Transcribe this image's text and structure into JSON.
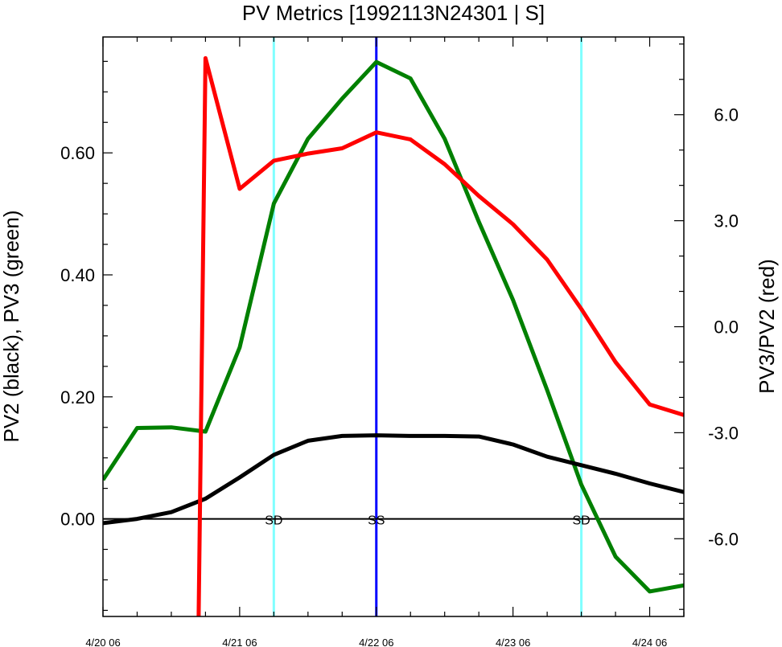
{
  "chart_data": {
    "type": "line",
    "title": "PV Metrics [1992113N24301 | S]",
    "ylabel_left": "PV2 (black), PV3 (green)",
    "ylabel_right": "PV3/PV2 (red)",
    "x_ticks": [
      {
        "x": 0,
        "label": "4/20 06"
      },
      {
        "x": 1,
        "label": "4/21 06"
      },
      {
        "x": 2,
        "label": "4/22 06"
      },
      {
        "x": 3,
        "label": "4/23 06"
      },
      {
        "x": 4,
        "label": "4/24 06"
      }
    ],
    "xlim": [
      0,
      4.25
    ],
    "ylim_left": [
      -0.16,
      0.79
    ],
    "ylim_right": [
      -8.2,
      8.2
    ],
    "left_ticks": [
      "0.00",
      "0.20",
      "0.40",
      "0.60"
    ],
    "right_ticks": [
      "-6.0",
      "-3.0",
      "0.0",
      "3.0",
      "6.0"
    ],
    "zero_line": 0,
    "vlines": [
      {
        "x": 1.25,
        "color": "#80ffff",
        "label": "SD"
      },
      {
        "x": 2.0,
        "color": "#0000ff",
        "label": "SS"
      },
      {
        "x": 3.5,
        "color": "#80ffff",
        "label": "SD"
      }
    ],
    "series": [
      {
        "axis": "left",
        "color": "#008000",
        "x": [
          0,
          0.25,
          0.5,
          0.75,
          1.0,
          1.25,
          1.5,
          1.75,
          2.0,
          2.25,
          2.5,
          2.75,
          3.0,
          3.25,
          3.5,
          3.75,
          4.0,
          4.25
        ],
        "values": [
          0.064,
          0.149,
          0.15,
          0.143,
          0.281,
          0.517,
          0.623,
          0.689,
          0.749,
          0.722,
          0.623,
          0.487,
          0.359,
          0.211,
          0.056,
          -0.062,
          -0.119,
          -0.109
        ]
      },
      {
        "axis": "left",
        "color": "#000000",
        "x": [
          0,
          0.25,
          0.5,
          0.75,
          1.0,
          1.25,
          1.5,
          1.75,
          2.0,
          2.25,
          2.5,
          2.75,
          3.0,
          3.25,
          3.5,
          3.75,
          4.0,
          4.25
        ],
        "values": [
          -0.007,
          0.0,
          0.011,
          0.033,
          0.068,
          0.105,
          0.128,
          0.136,
          0.137,
          0.136,
          0.136,
          0.135,
          0.122,
          0.102,
          0.088,
          0.074,
          0.058,
          0.044
        ]
      },
      {
        "axis": "right",
        "color": "#ff0000",
        "x": [
          0.7,
          0.75,
          1.0,
          1.25,
          1.5,
          1.75,
          2.0,
          2.25,
          2.5,
          2.75,
          3.0,
          3.25,
          3.5,
          3.75,
          4.0,
          4.25
        ],
        "values": [
          -8.2,
          7.6,
          3.9,
          4.7,
          4.9,
          5.05,
          5.5,
          5.3,
          4.6,
          3.7,
          2.9,
          1.9,
          0.5,
          -1.0,
          -2.2,
          -2.5
        ]
      }
    ]
  }
}
